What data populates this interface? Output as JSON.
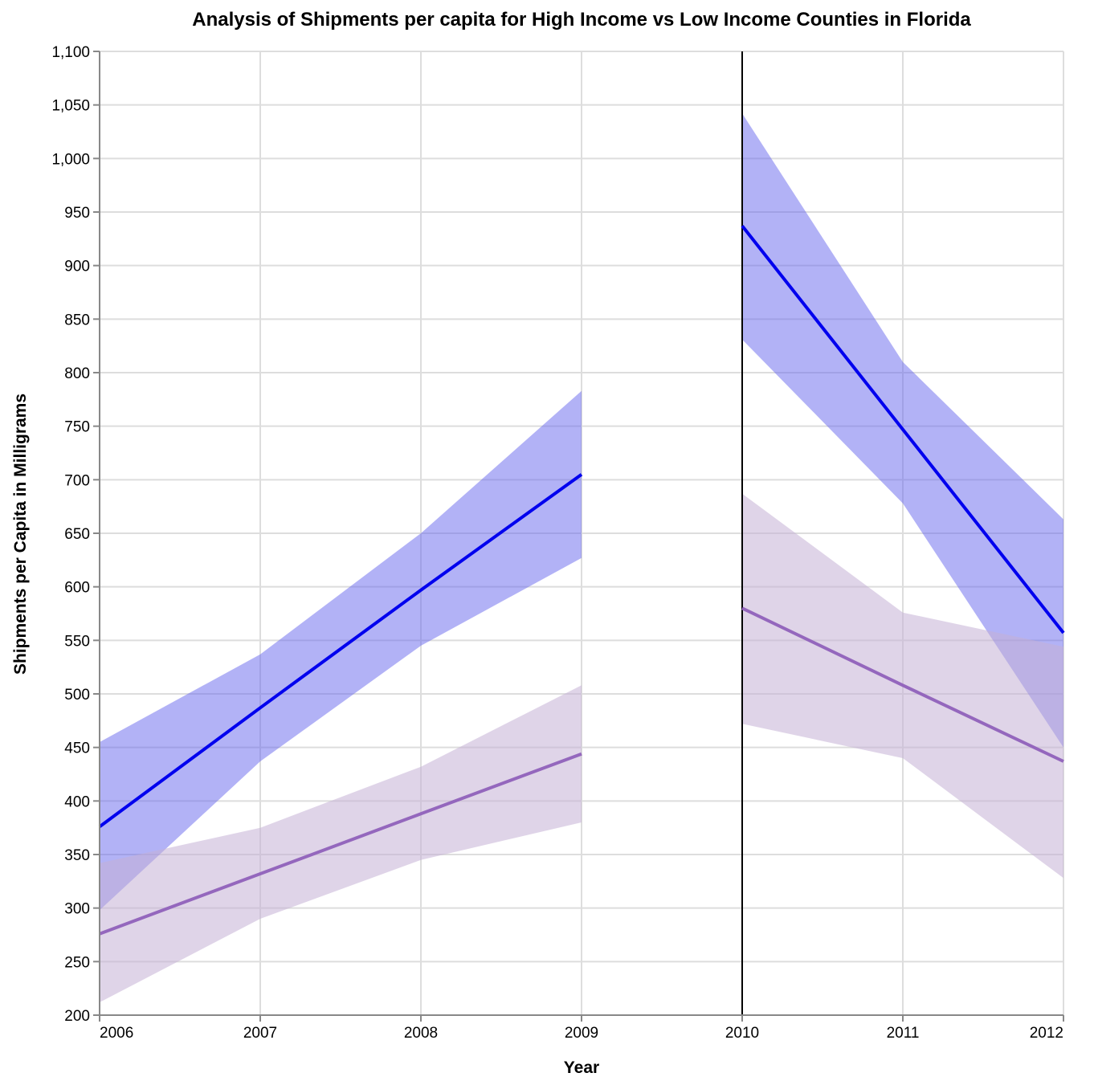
{
  "chart_data": {
    "type": "line",
    "title": "Analysis of Shipments per capita for High Income vs Low Income Counties in Florida",
    "xlabel": "Year",
    "ylabel": "Shipments per Capita in Milligrams",
    "xlim": [
      2006,
      2012
    ],
    "ylim": [
      200,
      1100
    ],
    "x_ticks": [
      "2006",
      "2007",
      "2008",
      "2009",
      "2010",
      "2011",
      "2012"
    ],
    "y_ticks": [
      "200",
      "250",
      "300",
      "350",
      "400",
      "450",
      "500",
      "550",
      "600",
      "650",
      "700",
      "750",
      "800",
      "850",
      "900",
      "950",
      "1,000",
      "1,050",
      "1,100"
    ],
    "y_tick_values": [
      200,
      250,
      300,
      350,
      400,
      450,
      500,
      550,
      600,
      650,
      700,
      750,
      800,
      850,
      900,
      950,
      1000,
      1050,
      1100
    ],
    "grid": true,
    "rule": {
      "x": 2010,
      "color": "#000000"
    },
    "series": [
      {
        "color": "#0000ee",
        "band_color": "#6666ee",
        "segments": [
          {
            "x": [
              2006,
              2007,
              2008,
              2009
            ],
            "y": [
              376,
              487,
              597,
              705
            ],
            "ci_upper": [
              455,
              537,
              650,
              783
            ],
            "ci_lower": [
              298,
              437,
              545,
              627
            ]
          },
          {
            "x": [
              2010,
              2011,
              2012
            ],
            "y": [
              937,
              747,
              557
            ],
            "ci_upper": [
              1042,
              810,
              663
            ],
            "ci_lower": [
              831,
              678,
              450
            ]
          }
        ]
      },
      {
        "color": "#9467bd",
        "band_color": "#c5b0d5",
        "segments": [
          {
            "x": [
              2006,
              2007,
              2008,
              2009
            ],
            "y": [
              276,
              332,
              388,
              444
            ],
            "ci_upper": [
              342,
              375,
              432,
              508
            ],
            "ci_lower": [
              212,
              290,
              345,
              380
            ]
          },
          {
            "x": [
              2010,
              2011,
              2012
            ],
            "y": [
              580,
              508,
              437
            ],
            "ci_upper": [
              687,
              576,
              544
            ],
            "ci_lower": [
              472,
              440,
              328
            ]
          }
        ]
      }
    ]
  }
}
